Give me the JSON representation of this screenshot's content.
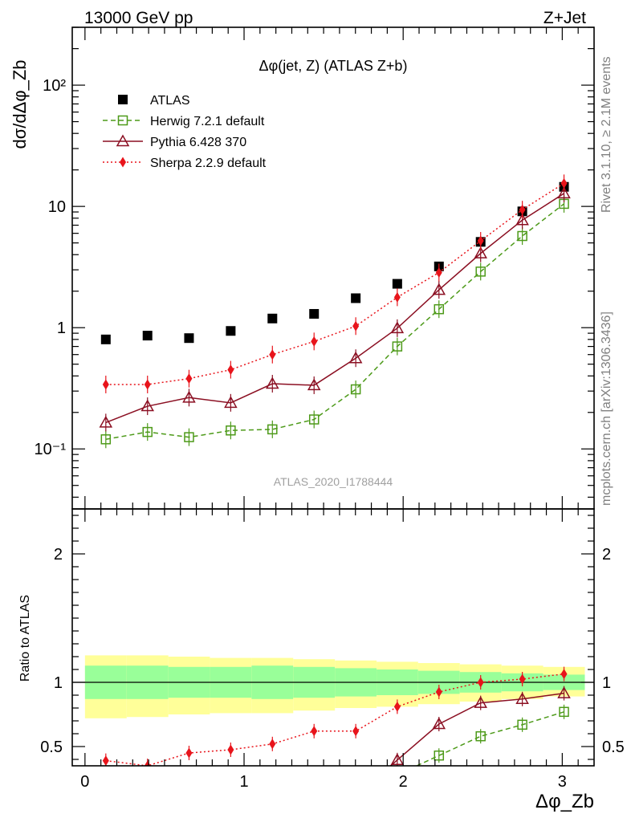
{
  "header": {
    "energy": "13000 GeV pp",
    "process": "Z+Jet"
  },
  "side": {
    "rivet": "Rivet 3.1.10, ≥ 2.1M events",
    "mcplots": "mcplots.cern.ch [arXiv:1306.3436]"
  },
  "colors": {
    "atlas": "#000000",
    "herwig": "#4d9a19",
    "pythia": "#8b0f22",
    "sherpa": "#e8141b",
    "band_inner": "#99ff99",
    "band_outer": "#ffff99",
    "watermark": "#a0a0a0"
  },
  "chart_data": [
    {
      "type": "scatter",
      "title": "Δφ(jet, Z) (ATLAS Z+b)",
      "ylabel": "dσ/dΔφ_Zb",
      "xlabel": "Δφ_Zb",
      "watermark": "ATLAS_2020_I1788444",
      "yscale": "log",
      "xlim": [
        -0.08,
        3.2
      ],
      "ylim": [
        0.032,
        300
      ],
      "yticks": [
        {
          "value": 0.1,
          "label": "10⁻¹"
        },
        {
          "value": 1,
          "label": "1"
        },
        {
          "value": 10,
          "label": "10"
        },
        {
          "value": 100,
          "label": "10²"
        }
      ],
      "legend_position": "top-left",
      "x": [
        0.131,
        0.393,
        0.654,
        0.916,
        1.178,
        1.44,
        1.702,
        1.963,
        2.225,
        2.487,
        2.749,
        3.011
      ],
      "series": [
        {
          "name": "ATLAS",
          "key": "atlas",
          "marker": "square",
          "line": "none",
          "values": [
            0.8,
            0.86,
            0.82,
            0.94,
            1.19,
            1.3,
            1.75,
            2.3,
            3.2,
            5.1,
            9.1,
            14.5
          ]
        },
        {
          "name": "Herwig 7.2.1 default",
          "key": "herwig",
          "marker": "open-square",
          "line": "dashed",
          "values": [
            0.12,
            0.138,
            0.125,
            0.142,
            0.145,
            0.175,
            0.31,
            0.7,
            1.42,
            2.9,
            5.7,
            10.5
          ]
        },
        {
          "name": "Pythia 6.428 370",
          "key": "pythia",
          "marker": "open-triangle",
          "line": "solid",
          "values": [
            0.165,
            0.225,
            0.265,
            0.24,
            0.345,
            0.335,
            0.56,
            0.99,
            2.05,
            4.1,
            7.7,
            12.8
          ]
        },
        {
          "name": "Sherpa 2.2.9 default",
          "key": "sherpa",
          "marker": "diamond",
          "line": "dotted",
          "values": [
            0.34,
            0.34,
            0.38,
            0.45,
            0.6,
            0.77,
            1.03,
            1.78,
            2.85,
            5.2,
            9.4,
            15.5
          ]
        }
      ]
    },
    {
      "type": "line",
      "ylabel": "Ratio to ATLAS",
      "xlabel": "Δφ_Zb",
      "xlim": [
        -0.08,
        3.2
      ],
      "ylim": [
        0.35,
        2.35
      ],
      "xticks": [
        0,
        1,
        2,
        3
      ],
      "yticks": [
        0.5,
        1,
        2
      ],
      "reference_line": 1,
      "bands": {
        "edges": [
          0,
          0.262,
          0.524,
          0.785,
          1.047,
          1.309,
          1.571,
          1.833,
          2.094,
          2.356,
          2.618,
          2.88,
          3.142
        ],
        "inner_lo": [
          0.87,
          0.87,
          0.88,
          0.88,
          0.87,
          0.88,
          0.89,
          0.9,
          0.91,
          0.92,
          0.93,
          0.94
        ],
        "inner_hi": [
          1.13,
          1.13,
          1.12,
          1.12,
          1.13,
          1.12,
          1.11,
          1.1,
          1.09,
          1.08,
          1.07,
          1.06
        ],
        "outer_lo": [
          0.72,
          0.73,
          0.75,
          0.76,
          0.76,
          0.78,
          0.8,
          0.81,
          0.83,
          0.85,
          0.87,
          0.89
        ],
        "outer_hi": [
          1.21,
          1.21,
          1.2,
          1.19,
          1.19,
          1.18,
          1.17,
          1.16,
          1.15,
          1.14,
          1.13,
          1.12
        ]
      },
      "series": [
        {
          "name": "Herwig 7.2.1 default",
          "key": "herwig",
          "x": [
            2.225,
            2.487,
            2.749,
            3.011
          ],
          "values": [
            0.43,
            0.58,
            0.67,
            0.77
          ],
          "lead_in": 0.35
        },
        {
          "name": "Pythia 6.428 370",
          "key": "pythia",
          "x": [
            1.963,
            2.225,
            2.487,
            2.749,
            3.011
          ],
          "values": [
            0.395,
            0.675,
            0.84,
            0.87,
            0.915
          ],
          "lead_in": 0.35
        },
        {
          "name": "Sherpa 2.2.9 default",
          "key": "sherpa",
          "x": [
            0.131,
            0.393,
            0.654,
            0.916,
            1.178,
            1.44,
            1.702,
            1.963,
            2.225,
            2.487,
            2.749,
            3.011
          ],
          "values": [
            0.39,
            0.35,
            0.45,
            0.475,
            0.52,
            0.62,
            0.62,
            0.81,
            0.925,
            1.0,
            1.025,
            1.065
          ]
        }
      ]
    }
  ]
}
